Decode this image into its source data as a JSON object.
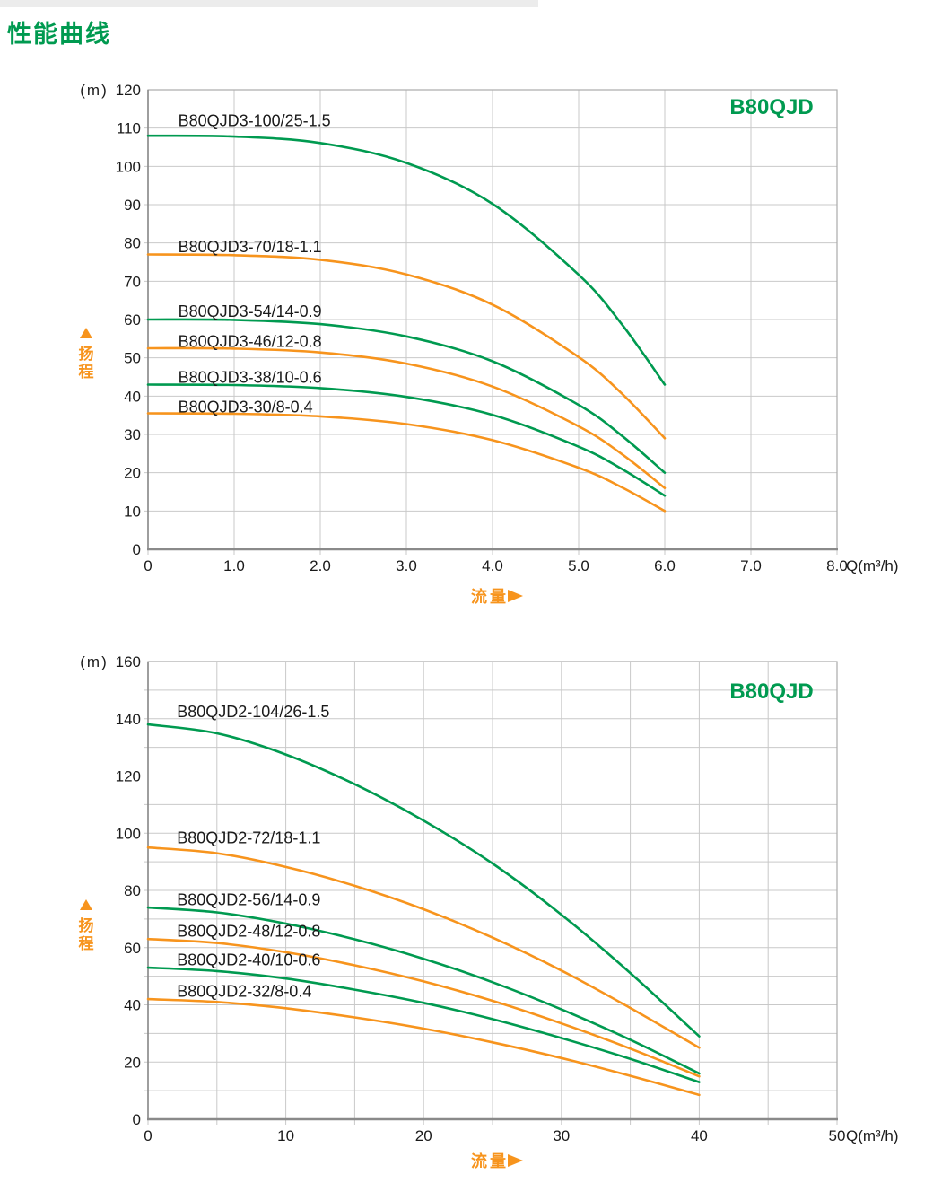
{
  "page": {
    "header": {
      "title": "性能曲线"
    }
  },
  "colors": {
    "green": "#009A50",
    "orange": "#F7941D",
    "text": "#1a1a1a",
    "grid": "#c9c9c9",
    "border": "#ababab",
    "axis": "#8a8a8a"
  },
  "chart_data": [
    {
      "type": "line",
      "badge": "B80QJD",
      "y_unit": "(m)",
      "x_unit": "Q(m³/h)",
      "y_axis_label_chars": [
        "扬",
        "程"
      ],
      "x_axis_label": "流量",
      "xlim": [
        0,
        8
      ],
      "ylim": [
        0,
        120
      ],
      "x_grid_step": 1,
      "y_grid_step": 10,
      "grid": true,
      "legend_position": "inline-labels",
      "x_ticks": [
        {
          "v": 0,
          "label": "0"
        },
        {
          "v": 1,
          "label": "1.0"
        },
        {
          "v": 2,
          "label": "2.0"
        },
        {
          "v": 3,
          "label": "3.0"
        },
        {
          "v": 4,
          "label": "4.0"
        },
        {
          "v": 5,
          "label": "5.0"
        },
        {
          "v": 6,
          "label": "6.0"
        },
        {
          "v": 7,
          "label": "7.0"
        },
        {
          "v": 8,
          "label": "8.0"
        }
      ],
      "y_ticks": [
        {
          "v": 0,
          "label": "0"
        },
        {
          "v": 10,
          "label": "10"
        },
        {
          "v": 20,
          "label": "20"
        },
        {
          "v": 30,
          "label": "30"
        },
        {
          "v": 40,
          "label": "40"
        },
        {
          "v": 50,
          "label": "50"
        },
        {
          "v": 60,
          "label": "60"
        },
        {
          "v": 70,
          "label": "70"
        },
        {
          "v": 80,
          "label": "80"
        },
        {
          "v": 90,
          "label": "90"
        },
        {
          "v": 100,
          "label": "100"
        },
        {
          "v": 110,
          "label": "110"
        },
        {
          "v": 120,
          "label": "120"
        }
      ],
      "x": [
        0,
        1,
        2,
        3,
        4,
        5,
        5.5,
        6
      ],
      "series": [
        {
          "name": "B80QJD3-100/25-1.5",
          "color": "green",
          "values": [
            108,
            107.8,
            106.1,
            100.9,
            90.2,
            71.7,
            58.8,
            43
          ],
          "label_x": 0.35,
          "label_y": 110.5
        },
        {
          "name": "B80QJD3-70/18-1.1",
          "color": "orange",
          "values": [
            77,
            76.8,
            75.6,
            71.8,
            63.9,
            50.2,
            40.7,
            29
          ],
          "label_x": 0.35,
          "label_y": 77.6
        },
        {
          "name": "B80QJD3-54/14-0.9",
          "color": "green",
          "values": [
            60,
            59.9,
            58.8,
            55.6,
            49.1,
            37.7,
            29.7,
            20
          ],
          "label_x": 0.35,
          "label_y": 60.7
        },
        {
          "name": "B80QJD3-46/12-0.8",
          "color": "orange",
          "values": [
            52.5,
            52.4,
            51.4,
            48.5,
            42.5,
            32.1,
            24.9,
            16
          ],
          "label_x": 0.35,
          "label_y": 52.8
        },
        {
          "name": "B80QJD3-38/10-0.6",
          "color": "green",
          "values": [
            43,
            42.9,
            42.1,
            39.8,
            35.1,
            26.8,
            21,
            14
          ],
          "label_x": 0.35,
          "label_y": 43.5
        },
        {
          "name": "B80QJD3-30/8-0.4",
          "color": "orange",
          "values": [
            35.5,
            35.4,
            34.7,
            32.7,
            28.5,
            21.3,
            16.2,
            10
          ],
          "label_x": 0.35,
          "label_y": 35.8
        }
      ]
    },
    {
      "type": "line",
      "badge": "B80QJD",
      "y_unit": "(m)",
      "x_unit": "Q(m³/h)",
      "y_axis_label_chars": [
        "扬",
        "程"
      ],
      "x_axis_label": "流量",
      "xlim": [
        0,
        50
      ],
      "ylim": [
        0,
        160
      ],
      "x_grid_step": 5,
      "y_grid_step": 10,
      "grid": true,
      "legend_position": "inline-labels",
      "x_ticks": [
        {
          "v": 0,
          "label": "0"
        },
        {
          "v": 10,
          "label": "10"
        },
        {
          "v": 20,
          "label": "20"
        },
        {
          "v": 30,
          "label": "30"
        },
        {
          "v": 40,
          "label": "40"
        },
        {
          "v": 50,
          "label": "50"
        }
      ],
      "y_ticks": [
        {
          "v": 0,
          "label": "0"
        },
        {
          "v": 20,
          "label": "20"
        },
        {
          "v": 40,
          "label": "40"
        },
        {
          "v": 60,
          "label": "60"
        },
        {
          "v": 80,
          "label": "80"
        },
        {
          "v": 100,
          "label": "100"
        },
        {
          "v": 120,
          "label": "120"
        },
        {
          "v": 140,
          "label": "140"
        },
        {
          "v": 160,
          "label": "160"
        }
      ],
      "x": [
        0,
        5,
        10,
        15,
        20,
        25,
        30,
        35,
        40
      ],
      "series": [
        {
          "name": "B80QJD2-104/26-1.5",
          "color": "green",
          "values": [
            138,
            134.9,
            127.5,
            117.1,
            104.4,
            89.4,
            71.5,
            51.1,
            29
          ],
          "label_x": 2.1,
          "label_y": 140.6
        },
        {
          "name": "B80QJD2-72/18-1.1",
          "color": "orange",
          "values": [
            95,
            93,
            88.2,
            81.6,
            73.4,
            63.5,
            52,
            38.9,
            25
          ],
          "label_x": 2.1,
          "label_y": 96.4
        },
        {
          "name": "B80QJD2-56/14-0.9",
          "color": "green",
          "values": [
            74,
            72.3,
            68.4,
            62.9,
            56.1,
            47.9,
            38.4,
            27.8,
            16
          ],
          "label_x": 2.1,
          "label_y": 74.8
        },
        {
          "name": "B80QJD2-48/12-0.8",
          "color": "orange",
          "values": [
            63,
            61.6,
            58.4,
            53.8,
            48.2,
            41.4,
            33.5,
            24.7,
            15
          ],
          "label_x": 2.1,
          "label_y": 63.8
        },
        {
          "name": "B80QJD2-40/10-0.6",
          "color": "green",
          "values": [
            53,
            51.8,
            49.2,
            45.3,
            40.7,
            35,
            28.4,
            21.1,
            13
          ],
          "label_x": 2.1,
          "label_y": 53.8
        },
        {
          "name": "B80QJD2-32/8-0.4",
          "color": "orange",
          "values": [
            42,
            41,
            38.8,
            35.6,
            31.7,
            26.9,
            21.4,
            15.2,
            8.5
          ],
          "label_x": 2.1,
          "label_y": 42.8
        }
      ]
    }
  ]
}
